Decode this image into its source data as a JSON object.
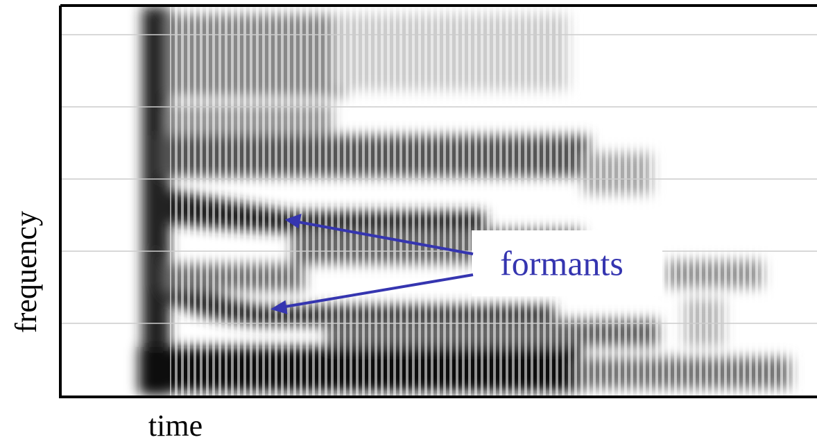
{
  "figure": {
    "y_axis_label": "frequency",
    "x_axis_label": "time",
    "annotation": "formants"
  }
}
